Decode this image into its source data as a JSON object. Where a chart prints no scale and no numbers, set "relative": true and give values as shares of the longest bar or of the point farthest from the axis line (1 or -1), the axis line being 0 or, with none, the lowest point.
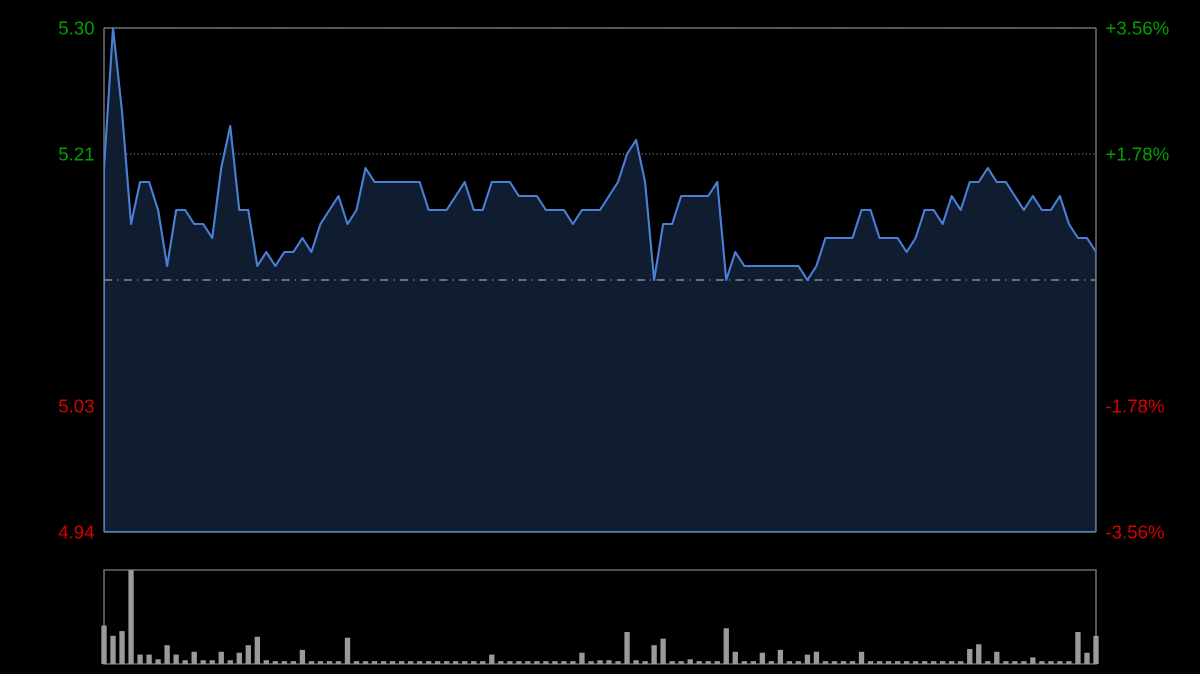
{
  "chart_data": [
    {
      "type": "area",
      "color": "#4a7fd6",
      "categories": [
        null,
        null,
        null,
        null,
        null,
        null,
        null,
        null,
        null,
        null,
        null,
        null,
        null,
        null,
        null,
        null,
        null,
        null,
        null,
        null,
        null,
        null,
        null,
        null,
        null,
        null,
        null,
        null,
        null,
        null,
        null,
        null,
        null,
        null,
        null,
        null,
        null,
        null,
        null,
        null,
        null,
        null,
        null,
        null,
        null,
        null,
        null,
        null,
        null,
        null,
        null,
        null,
        null,
        null,
        null,
        null,
        null,
        null,
        null,
        null,
        null,
        null,
        null,
        null,
        null,
        null,
        null,
        null,
        null,
        null,
        null,
        null,
        null,
        null,
        null,
        null,
        null,
        null,
        null,
        null,
        null,
        null,
        null,
        null,
        null,
        null,
        null,
        null,
        null,
        null,
        null,
        null,
        null,
        null,
        null,
        null,
        null,
        null,
        null,
        null,
        null,
        null,
        null,
        null,
        null,
        null,
        null,
        null,
        null,
        null,
        null
      ],
      "values": [
        5.2,
        5.3,
        5.24,
        5.16,
        5.19,
        5.19,
        5.17,
        5.13,
        5.17,
        5.17,
        5.16,
        5.16,
        5.15,
        5.2,
        5.23,
        5.17,
        5.17,
        5.13,
        5.14,
        5.13,
        5.14,
        5.14,
        5.15,
        5.14,
        5.16,
        5.17,
        5.18,
        5.16,
        5.17,
        5.2,
        5.19,
        5.19,
        5.19,
        5.19,
        5.19,
        5.19,
        5.17,
        5.17,
        5.17,
        5.18,
        5.19,
        5.17,
        5.17,
        5.19,
        5.19,
        5.19,
        5.18,
        5.18,
        5.18,
        5.17,
        5.17,
        5.17,
        5.16,
        5.17,
        5.17,
        5.17,
        5.18,
        5.19,
        5.21,
        5.22,
        5.19,
        5.12,
        5.16,
        5.16,
        5.18,
        5.18,
        5.18,
        5.18,
        5.19,
        5.12,
        5.14,
        5.13,
        5.13,
        5.13,
        5.13,
        5.13,
        5.13,
        5.13,
        5.12,
        5.13,
        5.15,
        5.15,
        5.15,
        5.15,
        5.17,
        5.17,
        5.15,
        5.15,
        5.15,
        5.14,
        5.15,
        5.17,
        5.17,
        5.16,
        5.18,
        5.17,
        5.19,
        5.19,
        5.2,
        5.19,
        5.19,
        5.18,
        5.17,
        5.18,
        5.17,
        5.17,
        5.18,
        5.16,
        5.15,
        5.15,
        5.14
      ],
      "ylim": [
        4.94,
        5.3
      ],
      "yticks": [
        {
          "value": 4.94,
          "label": "4.94"
        },
        {
          "value": 5.03,
          "label": "5.03"
        },
        {
          "value": 5.21,
          "label": "5.21"
        },
        {
          "value": 5.3,
          "label": "5.30"
        }
      ],
      "y2lim": [
        -3.56,
        3.56
      ],
      "y2ticks": [
        {
          "value": -3.56,
          "label": "-3.56%"
        },
        {
          "value": -1.78,
          "label": "-1.78%"
        },
        {
          "value": 1.78,
          "label": "+1.78%"
        },
        {
          "value": 3.56,
          "label": "+3.56%"
        }
      ],
      "ref_lines": [
        {
          "axis": "y",
          "value": 5.12,
          "color": "#8a8a8a"
        }
      ],
      "grid": true
    },
    {
      "type": "bar",
      "relative": true,
      "color": "#9a9a9a",
      "categories": [
        null,
        null,
        null,
        null,
        null,
        null,
        null,
        null,
        null,
        null,
        null,
        null,
        null,
        null,
        null,
        null,
        null,
        null,
        null,
        null,
        null,
        null,
        null,
        null,
        null,
        null,
        null,
        null,
        null,
        null,
        null,
        null,
        null,
        null,
        null,
        null,
        null,
        null,
        null,
        null,
        null,
        null,
        null,
        null,
        null,
        null,
        null,
        null,
        null,
        null,
        null,
        null,
        null,
        null,
        null,
        null,
        null,
        null,
        null,
        null,
        null,
        null,
        null,
        null,
        null,
        null,
        null,
        null,
        null,
        null,
        null,
        null,
        null,
        null,
        null,
        null,
        null,
        null,
        null,
        null,
        null,
        null,
        null,
        null,
        null,
        null,
        null,
        null,
        null,
        null,
        null,
        null,
        null,
        null,
        null,
        null,
        null,
        null,
        null,
        null,
        null,
        null,
        null,
        null,
        null,
        null,
        null,
        null,
        null,
        null,
        null
      ],
      "values": [
        0.41,
        0.3,
        0.35,
        1.0,
        0.1,
        0.1,
        0.05,
        0.2,
        0.1,
        0.04,
        0.13,
        0.04,
        0.04,
        0.13,
        0.04,
        0.12,
        0.2,
        0.29,
        0.04,
        0.03,
        0.03,
        0.03,
        0.15,
        0.03,
        0.03,
        0.03,
        0.03,
        0.28,
        0.03,
        0.03,
        0.03,
        0.03,
        0.03,
        0.03,
        0.03,
        0.03,
        0.03,
        0.03,
        0.03,
        0.03,
        0.03,
        0.03,
        0.03,
        0.1,
        0.03,
        0.03,
        0.03,
        0.03,
        0.03,
        0.03,
        0.03,
        0.03,
        0.03,
        0.12,
        0.03,
        0.04,
        0.04,
        0.03,
        0.34,
        0.04,
        0.03,
        0.2,
        0.27,
        0.03,
        0.03,
        0.05,
        0.03,
        0.03,
        0.03,
        0.38,
        0.13,
        0.03,
        0.03,
        0.12,
        0.03,
        0.15,
        0.03,
        0.03,
        0.1,
        0.13,
        0.03,
        0.03,
        0.03,
        0.03,
        0.13,
        0.03,
        0.03,
        0.03,
        0.03,
        0.03,
        0.03,
        0.03,
        0.03,
        0.03,
        0.03,
        0.03,
        0.16,
        0.21,
        0.03,
        0.13,
        0.03,
        0.03,
        0.03,
        0.07,
        0.03,
        0.03,
        0.03,
        0.03,
        0.34,
        0.12,
        0.3
      ]
    }
  ]
}
